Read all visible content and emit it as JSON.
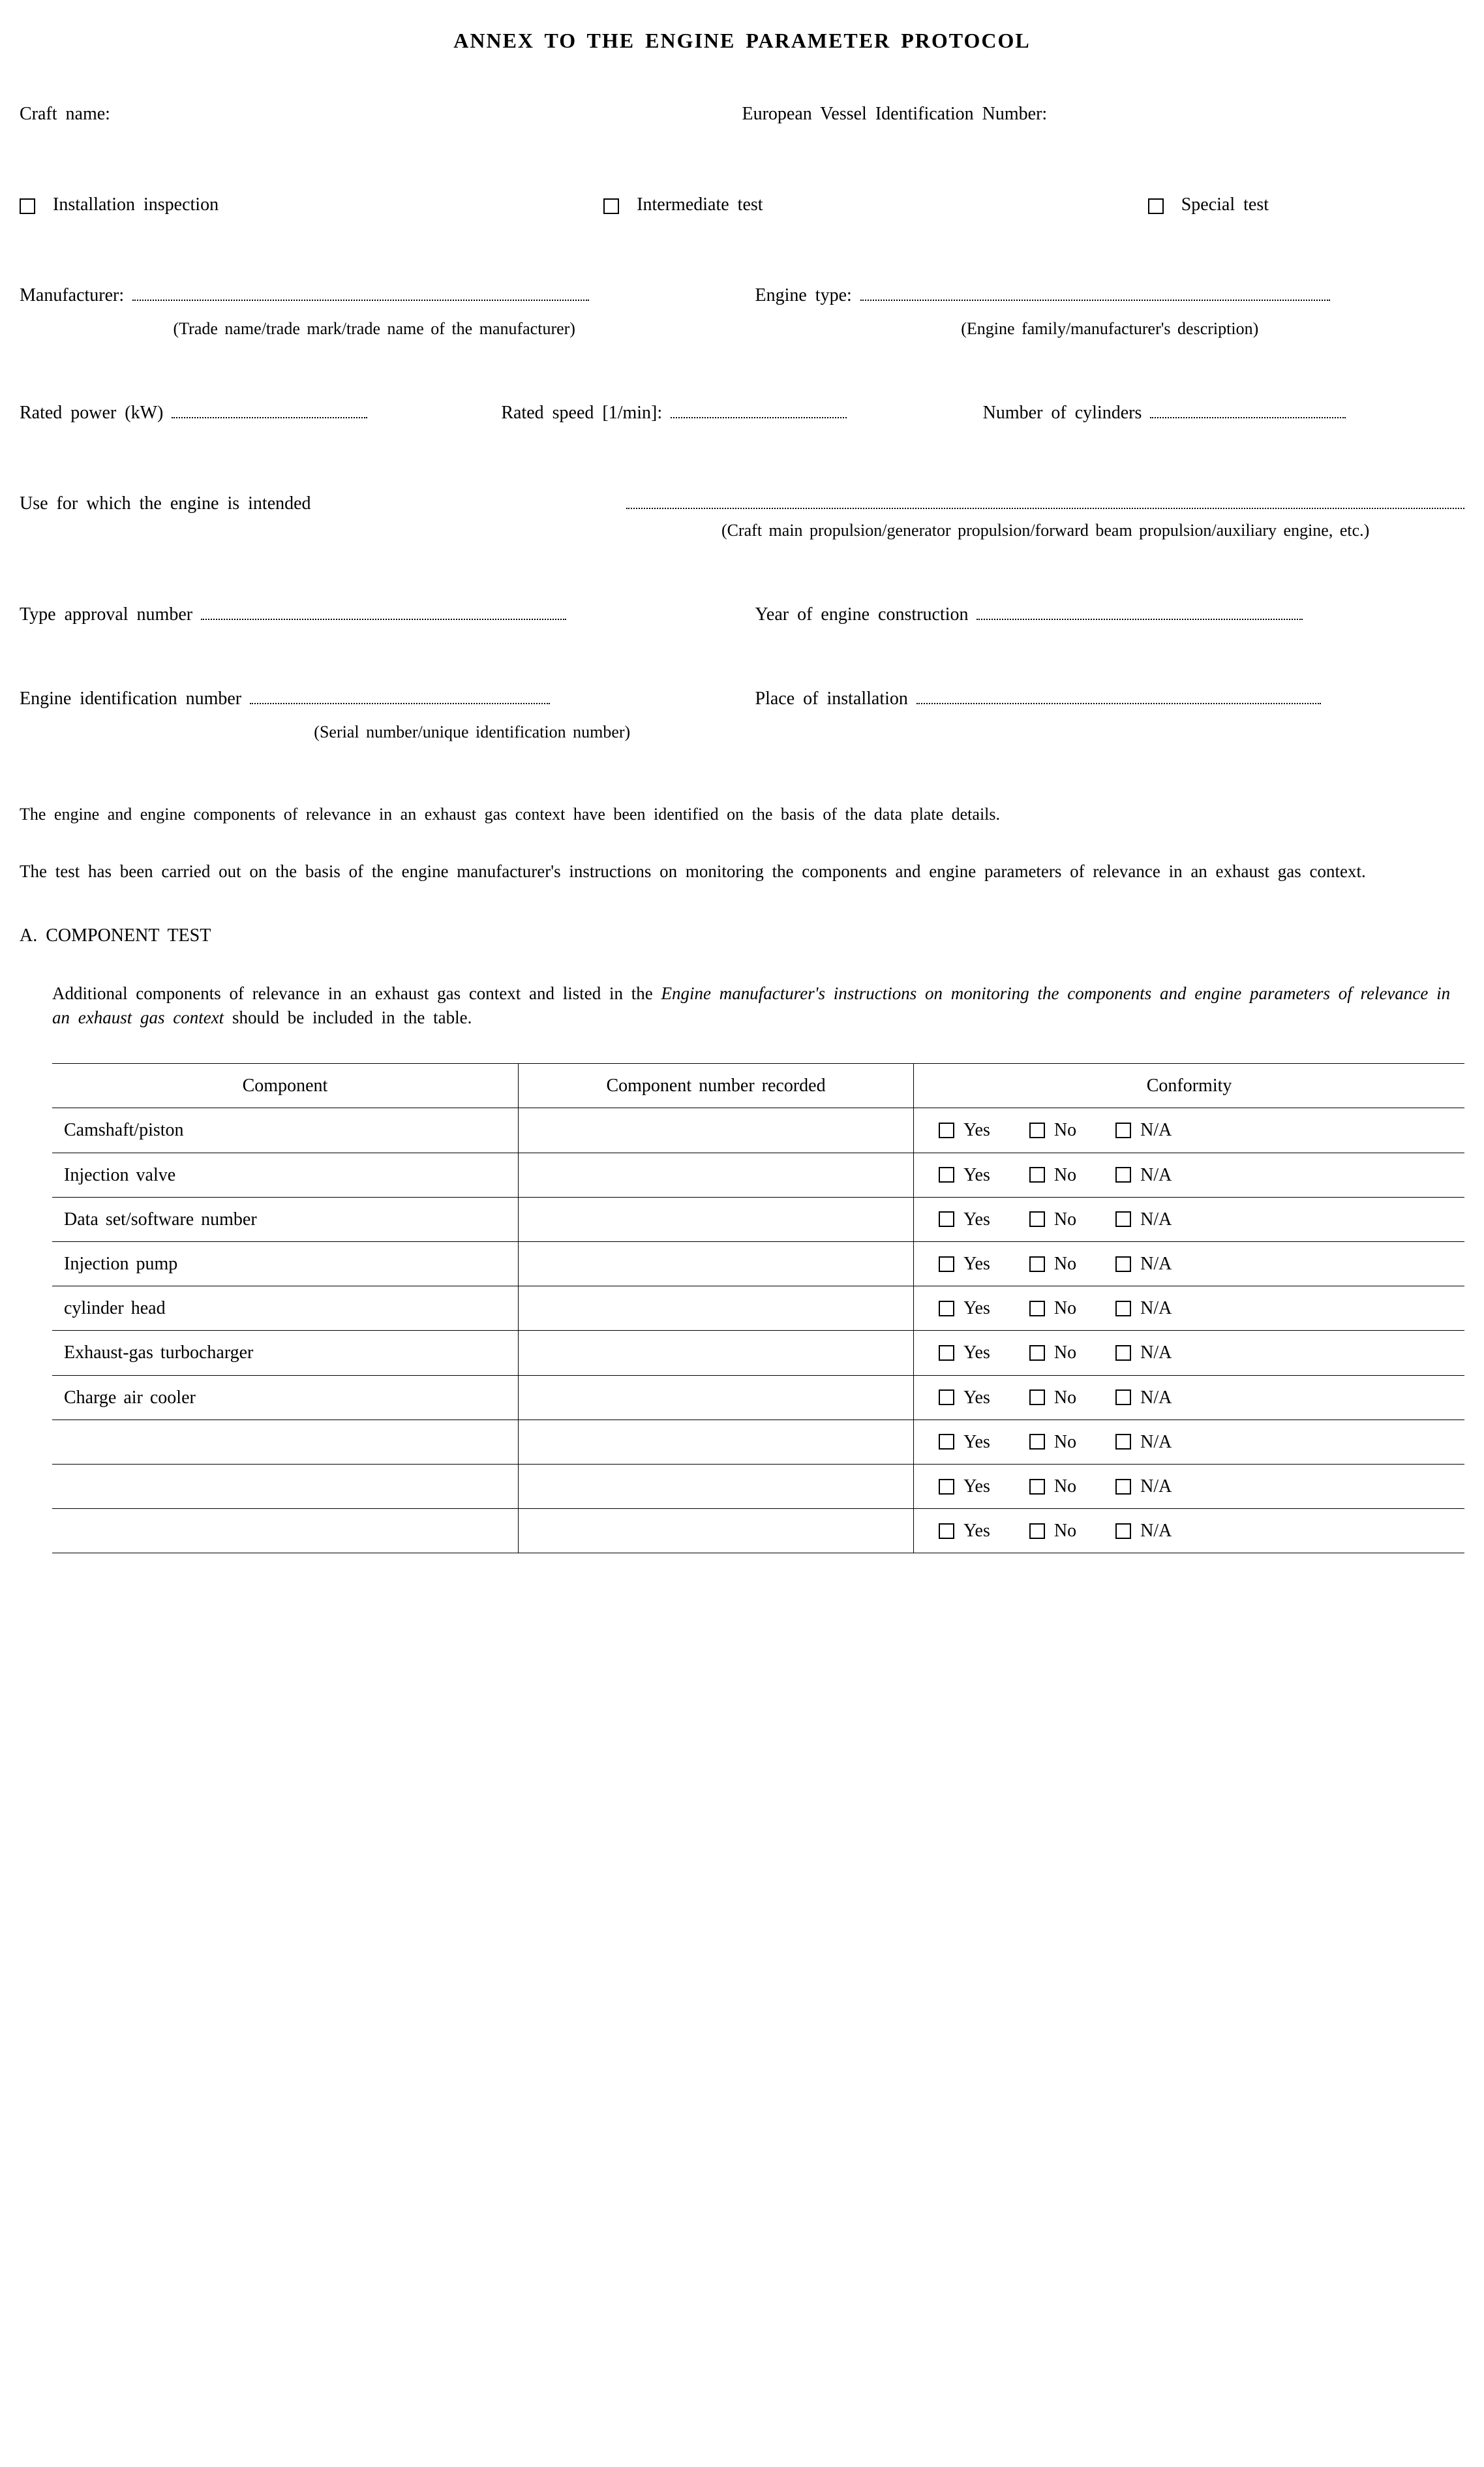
{
  "title": "ANNEX TO THE ENGINE PARAMETER PROTOCOL",
  "header_fields": {
    "craft_name_label": "Craft name:",
    "evin_label": "European Vessel Identification Number:"
  },
  "test_types": {
    "installation": "Installation inspection",
    "intermediate": "Intermediate test",
    "special": "Special test"
  },
  "manufacturer": {
    "label": "Manufacturer:",
    "sub": "(Trade name/trade mark/trade name of the manufacturer)"
  },
  "engine_type": {
    "label": "Engine type:",
    "sub": "(Engine family/manufacturer's description)"
  },
  "rated_power_label": "Rated power (kW)",
  "rated_speed_label": "Rated speed [1/min]:",
  "num_cylinders_label": "Number of cylinders",
  "use_label": "Use for which the engine is intended",
  "use_sub": "(Craft main propulsion/generator propulsion/forward beam propulsion/auxiliary engine, etc.)",
  "type_approval_label": "Type approval number",
  "year_construction_label": "Year of engine construction",
  "engine_id_label": "Engine identification number",
  "engine_id_sub": "(Serial number/unique identification number)",
  "place_install_label": "Place of installation",
  "para1": "The engine and engine components of relevance in an exhaust gas context have been identified on the basis of the data plate details.",
  "para2": "The test has been carried out on the basis of the engine manufacturer's instructions on monitoring the components and engine parameters of relevance in an exhaust gas context.",
  "sectionA": "A. COMPONENT TEST",
  "sectionA_intro_1": "Additional components of relevance in an exhaust gas context and listed in the ",
  "sectionA_intro_italic": "Engine manufacturer's instructions on monitoring the components and engine parameters of relevance in an exhaust gas context",
  "sectionA_intro_2": " should be included in the table.",
  "table": {
    "headers": {
      "component": "Component",
      "recorded": "Component number recorded",
      "conformity": "Conformity"
    },
    "conformity_opts": {
      "yes": "Yes",
      "no": "No",
      "na": "N/A"
    },
    "rows": [
      "Camshaft/piston",
      "Injection valve",
      "Data set/software number",
      "Injection pump",
      "cylinder head",
      "Exhaust-gas turbocharger",
      "Charge air cooler",
      "",
      "",
      ""
    ]
  }
}
